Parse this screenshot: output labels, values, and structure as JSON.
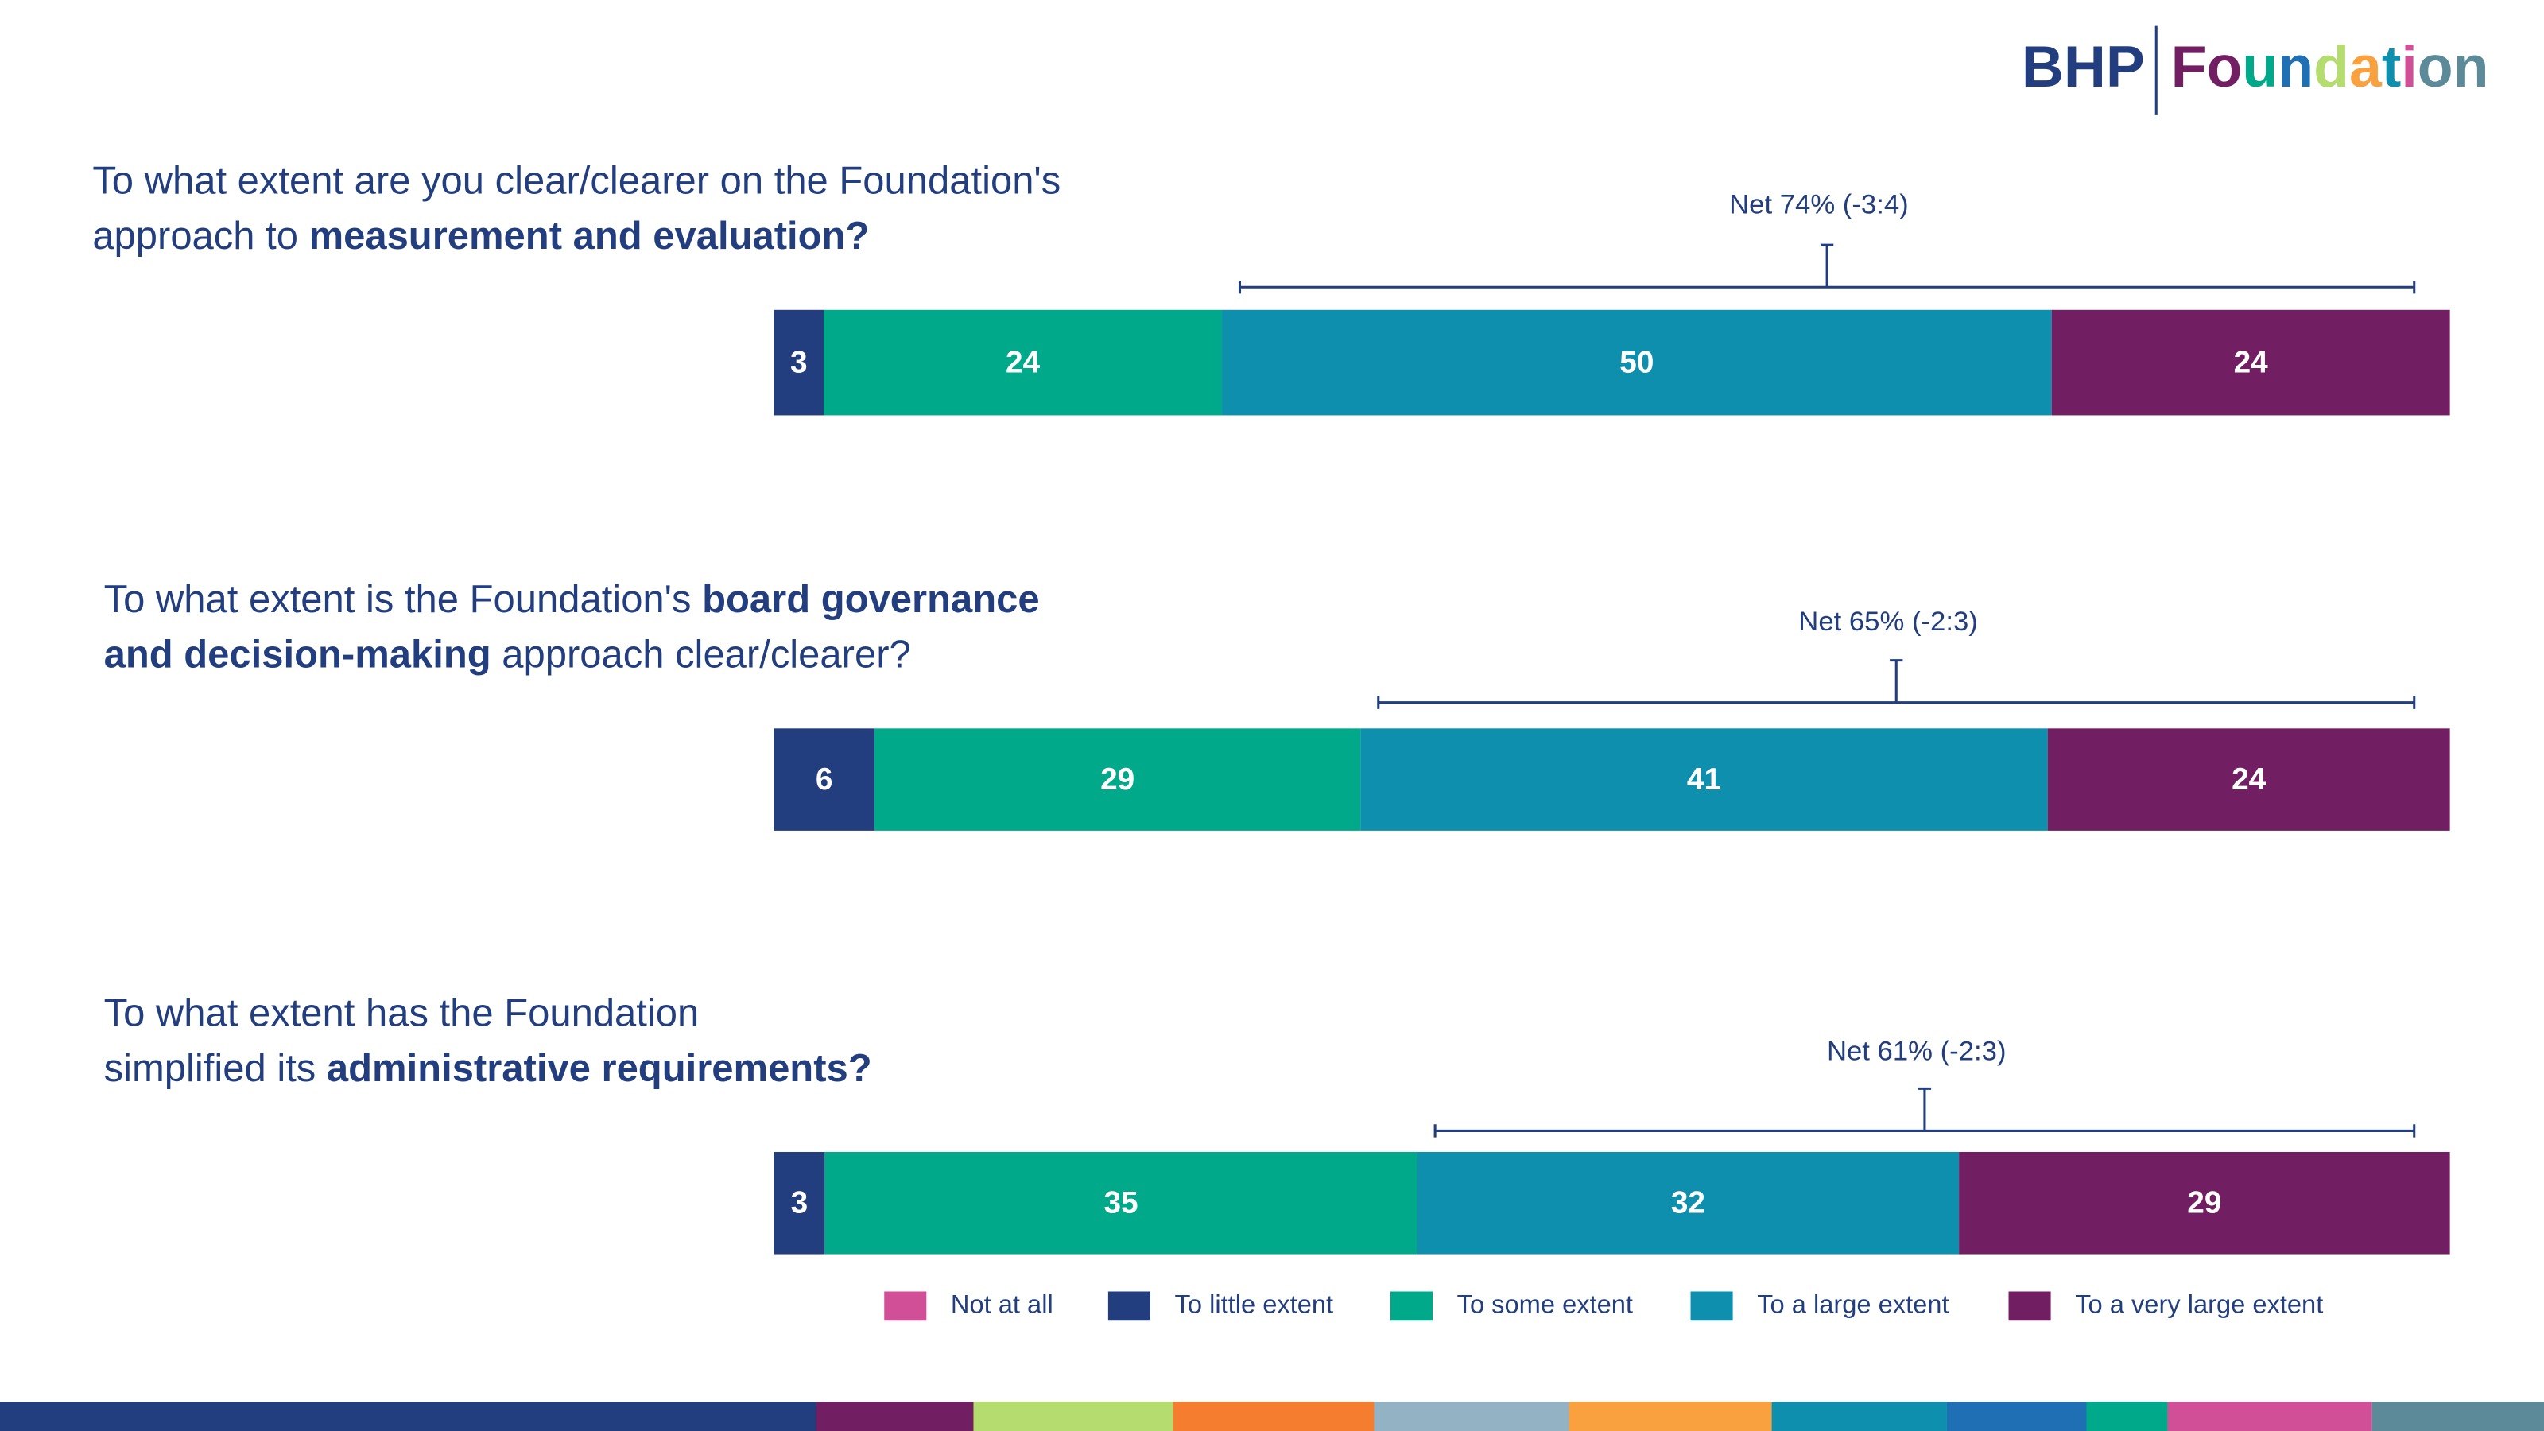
{
  "logo": {
    "brand": "BHP",
    "name": "Foundation"
  },
  "chart_data": [
    {
      "type": "stacked-bar",
      "title": [
        [
          {
            "text": "To what extent are you clear/clearer on the Foundation's",
            "bold": false
          }
        ],
        [
          {
            "text": "approach to ",
            "bold": false
          },
          {
            "text": "measurement and evaluation?",
            "bold": true
          }
        ]
      ],
      "annotation": "Net 74% (-3:4)",
      "series": [
        {
          "name": "Not at all",
          "color": "#d04f97",
          "values": [
            0
          ]
        },
        {
          "name": "To little extent",
          "color": "#223e7e",
          "values": [
            3
          ]
        },
        {
          "name": "To some extent",
          "color": "#00a98a",
          "values": [
            24
          ]
        },
        {
          "name": "To a large extent",
          "color": "#0e8fae",
          "values": [
            50
          ]
        },
        {
          "name": "To a very large extent",
          "color": "#721e63",
          "values": [
            24
          ]
        }
      ]
    },
    {
      "type": "stacked-bar",
      "title": [
        [
          {
            "text": "To what extent is the Foundation's ",
            "bold": false
          },
          {
            "text": "board governance",
            "bold": true
          }
        ],
        [
          {
            "text": "and decision-making",
            "bold": true
          },
          {
            "text": " approach clear/clearer?",
            "bold": false
          }
        ]
      ],
      "annotation": "Net 65% (-2:3)",
      "series": [
        {
          "name": "Not at all",
          "color": "#d04f97",
          "values": [
            0
          ]
        },
        {
          "name": "To little extent",
          "color": "#223e7e",
          "values": [
            6
          ]
        },
        {
          "name": "To some extent",
          "color": "#00a98a",
          "values": [
            29
          ]
        },
        {
          "name": "To a large extent",
          "color": "#0e8fae",
          "values": [
            41
          ]
        },
        {
          "name": "To a very large extent",
          "color": "#721e63",
          "values": [
            24
          ]
        }
      ]
    },
    {
      "type": "stacked-bar",
      "title": [
        [
          {
            "text": "To what extent has the Foundation",
            "bold": false
          }
        ],
        [
          {
            "text": "simplified its ",
            "bold": false
          },
          {
            "text": "administrative requirements?",
            "bold": true
          }
        ]
      ],
      "annotation": "Net 61% (-2:3)",
      "series": [
        {
          "name": "Not at all",
          "color": "#d04f97",
          "values": [
            0
          ]
        },
        {
          "name": "To little extent",
          "color": "#223e7e",
          "values": [
            3
          ]
        },
        {
          "name": "To some extent",
          "color": "#00a98a",
          "values": [
            35
          ]
        },
        {
          "name": "To a large extent",
          "color": "#0e8fae",
          "values": [
            32
          ]
        },
        {
          "name": "To a very large extent",
          "color": "#721e63",
          "values": [
            29
          ]
        }
      ]
    }
  ]
}
